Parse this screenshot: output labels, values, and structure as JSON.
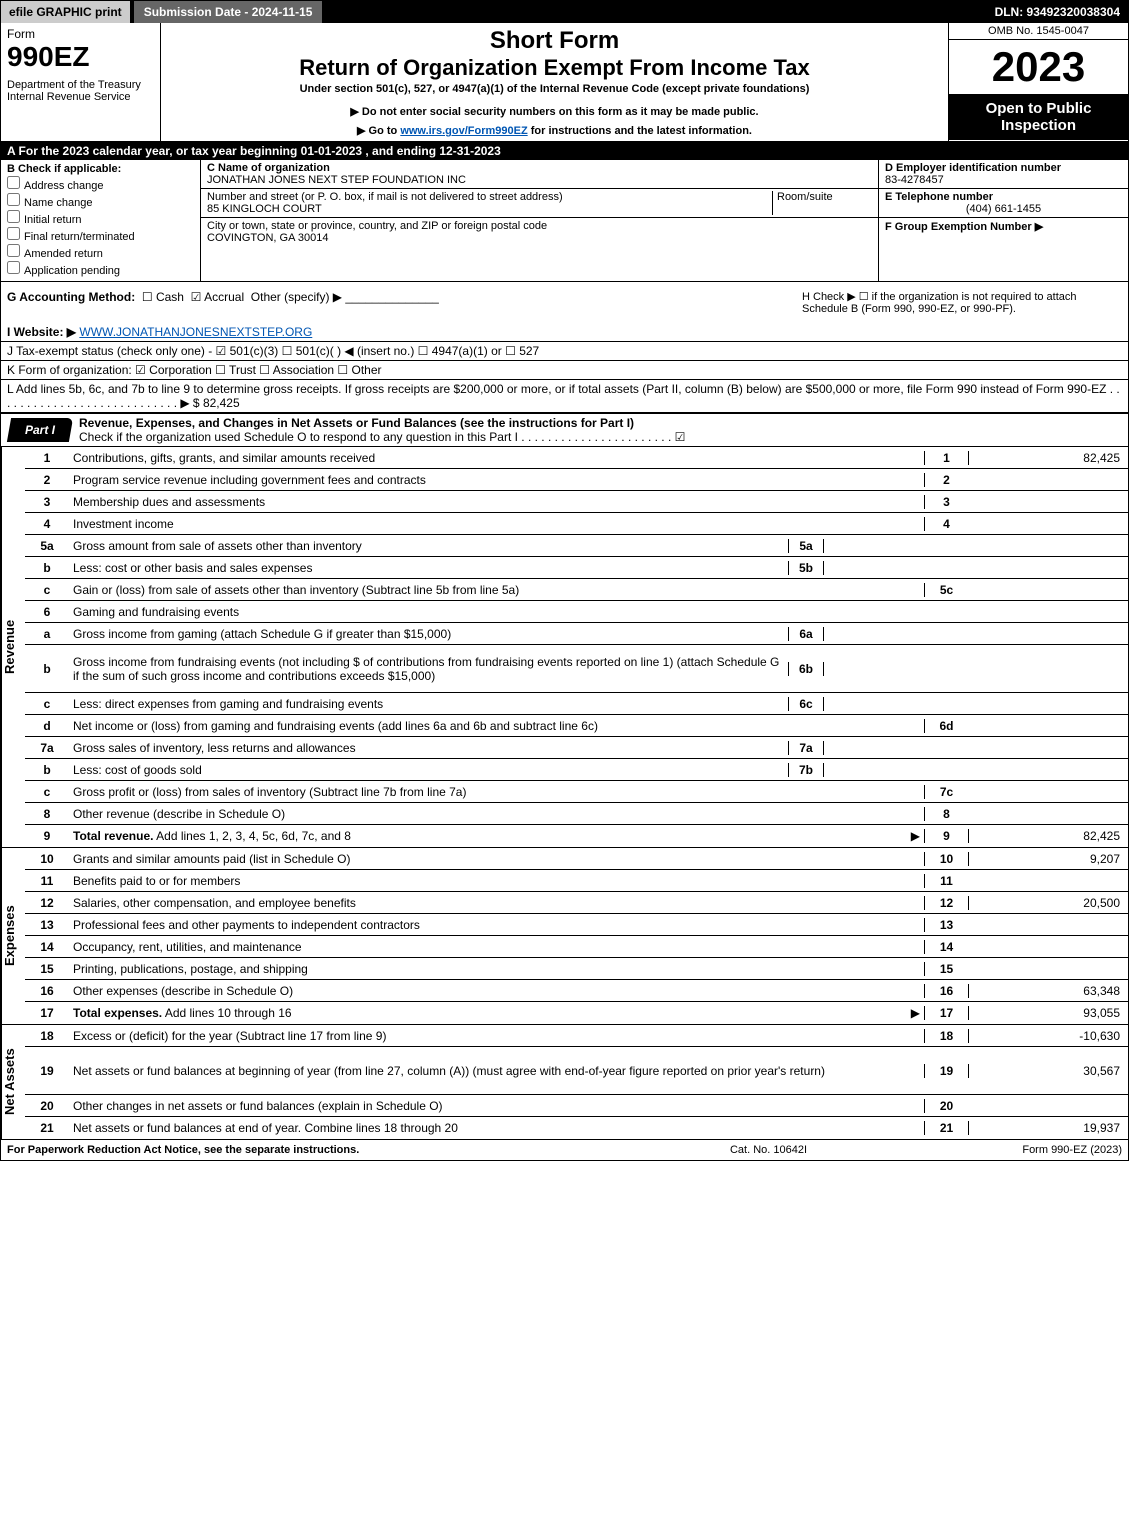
{
  "colors": {
    "black": "#000000",
    "white": "#ffffff",
    "grey_btn": "#cccccc",
    "grey_dark": "#666666",
    "shade": "#d0d0d0",
    "link": "#0056b3"
  },
  "topbar": {
    "efile": "efile GRAPHIC print",
    "submission": "Submission Date - 2024-11-15",
    "dln": "DLN: 93492320038304"
  },
  "header": {
    "form_label": "Form",
    "form_no": "990EZ",
    "dept": "Department of the Treasury\nInternal Revenue Service",
    "short_form": "Short Form",
    "title": "Return of Organization Exempt From Income Tax",
    "subtitle": "Under section 501(c), 527, or 4947(a)(1) of the Internal Revenue Code (except private foundations)",
    "note1": "▶ Do not enter social security numbers on this form as it may be made public.",
    "note2_pre": "▶ Go to ",
    "note2_link": "www.irs.gov/Form990EZ",
    "note2_post": " for instructions and the latest information.",
    "omb": "OMB No. 1545-0047",
    "year": "2023",
    "open": "Open to Public Inspection"
  },
  "row_a": "A  For the 2023 calendar year, or tax year beginning 01-01-2023 , and ending 12-31-2023",
  "section_b": {
    "label": "B  Check if applicable:",
    "opts": [
      "Address change",
      "Name change",
      "Initial return",
      "Final return/terminated",
      "Amended return",
      "Application pending"
    ]
  },
  "section_c": {
    "name_lbl": "C Name of organization",
    "name": "JONATHAN JONES NEXT STEP FOUNDATION INC",
    "addr_lbl": "Number and street (or P. O. box, if mail is not delivered to street address)",
    "room_lbl": "Room/suite",
    "addr": "85 KINGLOCH COURT",
    "city_lbl": "City or town, state or province, country, and ZIP or foreign postal code",
    "city": "COVINGTON, GA  30014"
  },
  "section_de": {
    "d_lbl": "D Employer identification number",
    "d_val": "83-4278457",
    "e_lbl": "E Telephone number",
    "e_val": "(404) 661-1455",
    "f_lbl": "F Group Exemption Number   ▶"
  },
  "row_g": {
    "label": "G Accounting Method:",
    "cash": "Cash",
    "accrual": "Accrual",
    "other": "Other (specify) ▶"
  },
  "row_h": "H  Check ▶  ☐  if the organization is not required to attach Schedule B (Form 990, 990-EZ, or 990-PF).",
  "row_i": {
    "label": "I Website: ▶",
    "val": "WWW.JONATHANJONESNEXTSTEP.ORG"
  },
  "row_j": "J Tax-exempt status (check only one) -  ☑ 501(c)(3)  ☐ 501(c)(  ) ◀ (insert no.)  ☐ 4947(a)(1) or  ☐ 527",
  "row_k": "K Form of organization:   ☑ Corporation   ☐ Trust   ☐ Association   ☐ Other",
  "row_l": {
    "text": "L Add lines 5b, 6c, and 7b to line 9 to determine gross receipts. If gross receipts are $200,000 or more, or if total assets (Part II, column (B) below) are $500,000 or more, file Form 990 instead of Form 990-EZ  .  .  .  .  .  .  .  .  .  .  .  .  .  .  .  .  .  .  .  .  .  .  .  .  .  .  .  .  ▶ $",
    "amount": "82,425"
  },
  "part1": {
    "tag": "Part I",
    "title": "Revenue, Expenses, and Changes in Net Assets or Fund Balances (see the instructions for Part I)",
    "checkline": "Check if the organization used Schedule O to respond to any question in this Part I .  .  .  .  .  .  .  .  .  .  .  .  .  .  .  .  .  .  .  .  .  .  .  ☑"
  },
  "sections": {
    "revenue_label": "Revenue",
    "expenses_label": "Expenses",
    "netassets_label": "Net Assets"
  },
  "revenue": [
    {
      "no": "1",
      "desc": "Contributions, gifts, grants, and similar amounts received",
      "rn": "1",
      "val": "82,425"
    },
    {
      "no": "2",
      "desc": "Program service revenue including government fees and contracts",
      "rn": "2",
      "val": ""
    },
    {
      "no": "3",
      "desc": "Membership dues and assessments",
      "rn": "3",
      "val": ""
    },
    {
      "no": "4",
      "desc": "Investment income",
      "rn": "4",
      "val": ""
    },
    {
      "no": "5a",
      "desc": "Gross amount from sale of assets other than inventory",
      "sub": "5a",
      "shade": true
    },
    {
      "no": "b",
      "desc": "Less: cost or other basis and sales expenses",
      "sub": "5b",
      "shade": true
    },
    {
      "no": "c",
      "desc": "Gain or (loss) from sale of assets other than inventory (Subtract line 5b from line 5a)",
      "rn": "5c",
      "val": ""
    },
    {
      "no": "6",
      "desc": "Gaming and fundraising events",
      "shade": true,
      "noval": true
    },
    {
      "no": "a",
      "desc": "Gross income from gaming (attach Schedule G if greater than $15,000)",
      "sub": "6a",
      "shade": true
    },
    {
      "no": "b",
      "desc": "Gross income from fundraising events (not including $                    of contributions from fundraising events reported on line 1) (attach Schedule G if the sum of such gross income and contributions exceeds $15,000)",
      "sub": "6b",
      "shade": true,
      "tall": true
    },
    {
      "no": "c",
      "desc": "Less: direct expenses from gaming and fundraising events",
      "sub": "6c",
      "shade": true
    },
    {
      "no": "d",
      "desc": "Net income or (loss) from gaming and fundraising events (add lines 6a and 6b and subtract line 6c)",
      "rn": "6d",
      "val": ""
    },
    {
      "no": "7a",
      "desc": "Gross sales of inventory, less returns and allowances",
      "sub": "7a",
      "shade": true
    },
    {
      "no": "b",
      "desc": "Less: cost of goods sold",
      "sub": "7b",
      "shade": true
    },
    {
      "no": "c",
      "desc": "Gross profit or (loss) from sales of inventory (Subtract line 7b from line 7a)",
      "rn": "7c",
      "val": ""
    },
    {
      "no": "8",
      "desc": "Other revenue (describe in Schedule O)",
      "rn": "8",
      "val": ""
    },
    {
      "no": "9",
      "desc": "Total revenue. Add lines 1, 2, 3, 4, 5c, 6d, 7c, and 8",
      "rn": "9",
      "val": "82,425",
      "bold": true,
      "arrow": true
    }
  ],
  "expenses": [
    {
      "no": "10",
      "desc": "Grants and similar amounts paid (list in Schedule O)",
      "rn": "10",
      "val": "9,207"
    },
    {
      "no": "11",
      "desc": "Benefits paid to or for members",
      "rn": "11",
      "val": ""
    },
    {
      "no": "12",
      "desc": "Salaries, other compensation, and employee benefits",
      "rn": "12",
      "val": "20,500"
    },
    {
      "no": "13",
      "desc": "Professional fees and other payments to independent contractors",
      "rn": "13",
      "val": ""
    },
    {
      "no": "14",
      "desc": "Occupancy, rent, utilities, and maintenance",
      "rn": "14",
      "val": ""
    },
    {
      "no": "15",
      "desc": "Printing, publications, postage, and shipping",
      "rn": "15",
      "val": ""
    },
    {
      "no": "16",
      "desc": "Other expenses (describe in Schedule O)",
      "rn": "16",
      "val": "63,348"
    },
    {
      "no": "17",
      "desc": "Total expenses. Add lines 10 through 16",
      "rn": "17",
      "val": "93,055",
      "bold": true,
      "arrow": true
    }
  ],
  "netassets": [
    {
      "no": "18",
      "desc": "Excess or (deficit) for the year (Subtract line 17 from line 9)",
      "rn": "18",
      "val": "-10,630"
    },
    {
      "no": "19",
      "desc": "Net assets or fund balances at beginning of year (from line 27, column (A)) (must agree with end-of-year figure reported on prior year's return)",
      "rn": "19",
      "val": "30,567",
      "tall": true
    },
    {
      "no": "20",
      "desc": "Other changes in net assets or fund balances (explain in Schedule O)",
      "rn": "20",
      "val": ""
    },
    {
      "no": "21",
      "desc": "Net assets or fund balances at end of year. Combine lines 18 through 20",
      "rn": "21",
      "val": "19,937"
    }
  ],
  "footer": {
    "left": "For Paperwork Reduction Act Notice, see the separate instructions.",
    "mid": "Cat. No. 10642I",
    "right": "Form 990-EZ (2023)"
  }
}
